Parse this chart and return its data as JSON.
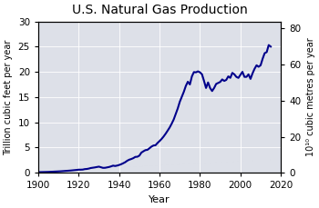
{
  "title": "U.S. Natural Gas Production",
  "xlabel": "Year",
  "ylabel_left": "Trillion cubic feet per year",
  "ylabel_right": "10¹⁰ cubic metres per year",
  "xlim": [
    1900,
    2020
  ],
  "ylim_left": [
    0,
    30
  ],
  "ylim_right": [
    0,
    84
  ],
  "xticks": [
    1900,
    1920,
    1940,
    1960,
    1980,
    2000,
    2020
  ],
  "yticks_left": [
    0,
    5,
    10,
    15,
    20,
    25,
    30
  ],
  "yticks_right": [
    0,
    20,
    40,
    60,
    80
  ],
  "line_color": "#00008B",
  "line_width": 1.5,
  "bg_color": "#e8e8f0",
  "years": [
    1900,
    1901,
    1902,
    1903,
    1904,
    1905,
    1906,
    1907,
    1908,
    1909,
    1910,
    1911,
    1912,
    1913,
    1914,
    1915,
    1916,
    1917,
    1918,
    1919,
    1920,
    1921,
    1922,
    1923,
    1924,
    1925,
    1926,
    1927,
    1928,
    1929,
    1930,
    1931,
    1932,
    1933,
    1934,
    1935,
    1936,
    1937,
    1938,
    1939,
    1940,
    1941,
    1942,
    1943,
    1944,
    1945,
    1946,
    1947,
    1948,
    1949,
    1950,
    1951,
    1952,
    1953,
    1954,
    1955,
    1956,
    1957,
    1958,
    1959,
    1960,
    1961,
    1962,
    1963,
    1964,
    1965,
    1966,
    1967,
    1968,
    1969,
    1970,
    1971,
    1972,
    1973,
    1974,
    1975,
    1976,
    1977,
    1978,
    1979,
    1980,
    1981,
    1982,
    1983,
    1984,
    1985,
    1986,
    1987,
    1988,
    1989,
    1990,
    1991,
    1992,
    1993,
    1994,
    1995,
    1996,
    1997,
    1998,
    1999,
    2000,
    2001,
    2002,
    2003,
    2004,
    2005,
    2006,
    2007,
    2008,
    2009,
    2010,
    2011,
    2012,
    2013,
    2014,
    2015
  ],
  "values": [
    0.13,
    0.14,
    0.15,
    0.16,
    0.17,
    0.18,
    0.2,
    0.22,
    0.24,
    0.26,
    0.28,
    0.3,
    0.33,
    0.36,
    0.39,
    0.42,
    0.45,
    0.49,
    0.53,
    0.57,
    0.62,
    0.62,
    0.64,
    0.73,
    0.76,
    0.84,
    0.95,
    1.01,
    1.07,
    1.15,
    1.22,
    1.1,
    0.98,
    0.99,
    1.07,
    1.15,
    1.27,
    1.42,
    1.35,
    1.43,
    1.55,
    1.7,
    1.89,
    2.1,
    2.39,
    2.6,
    2.73,
    2.9,
    3.15,
    3.18,
    3.4,
    4.0,
    4.26,
    4.49,
    4.55,
    4.86,
    5.19,
    5.41,
    5.46,
    5.91,
    6.29,
    6.7,
    7.19,
    7.74,
    8.35,
    8.98,
    9.73,
    10.56,
    11.65,
    12.75,
    14.06,
    15.05,
    16.04,
    17.21,
    18.04,
    17.5,
    19.1,
    19.95,
    19.9,
    20.1,
    19.9,
    19.5,
    18.2,
    16.8,
    17.9,
    16.8,
    16.2,
    16.8,
    17.6,
    17.8,
    18.0,
    18.5,
    18.2,
    18.4,
    19.1,
    18.8,
    19.8,
    19.5,
    19.0,
    18.8,
    19.4,
    20.0,
    19.0,
    19.0,
    19.5,
    18.6,
    19.7,
    20.6,
    21.3,
    21.0,
    21.3,
    22.6,
    23.7,
    23.9,
    25.3,
    25.0
  ]
}
